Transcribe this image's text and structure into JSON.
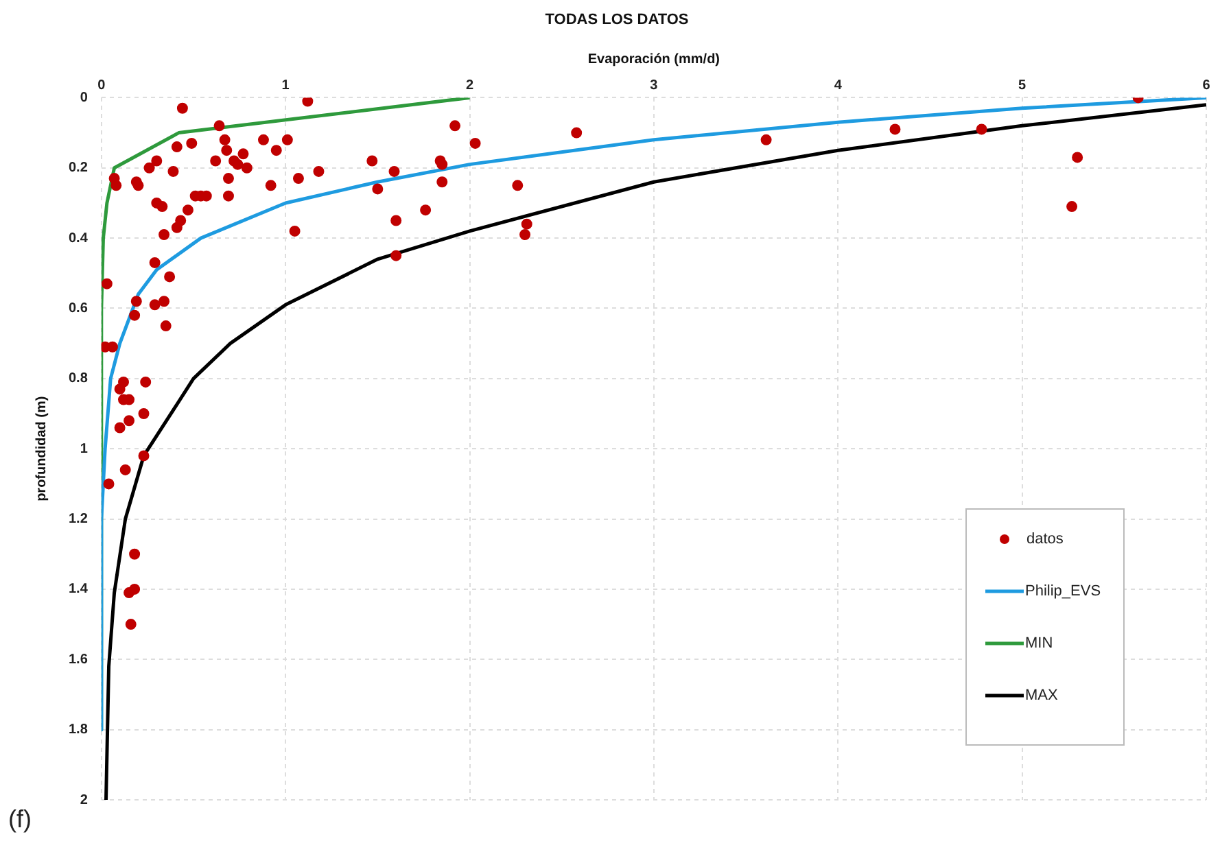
{
  "chart_data": {
    "type": "scatter",
    "title": "TODAS LOS DATOS",
    "xlabel": "Evaporación (mm/d)",
    "ylabel": "profundidad (m)",
    "xlim": [
      0,
      6
    ],
    "xticks": [
      0,
      1,
      2,
      3,
      4,
      5,
      6
    ],
    "ylim": [
      2,
      0
    ],
    "yticks": [
      0,
      0.2,
      0.4,
      0.6,
      0.8,
      1,
      1.2,
      1.4,
      1.6,
      1.8,
      2
    ],
    "grid": true,
    "legend": "bottom right",
    "marker": "circle",
    "annotations": [
      "(f)"
    ],
    "series": [
      {
        "name": "datos",
        "type": "scatter",
        "color": "#c00000",
        "x": [
          0.44,
          1.12,
          0.64,
          0.67,
          0.88,
          1.01,
          0.95,
          0.41,
          0.49,
          0.68,
          0.77,
          0.62,
          0.72,
          0.74,
          0.79,
          0.3,
          0.26,
          0.39,
          0.07,
          0.08,
          0.19,
          0.2,
          0.69,
          1.07,
          1.18,
          0.92,
          0.51,
          0.54,
          0.57,
          0.69,
          0.3,
          0.33,
          0.47,
          0.43,
          0.41,
          0.34,
          1.05,
          0.29,
          0.37,
          0.03,
          0.19,
          0.29,
          0.34,
          0.18,
          0.35,
          0.02,
          0.06,
          1.47,
          1.5,
          1.59,
          1.6,
          1.6,
          1.76,
          1.84,
          1.85,
          1.85,
          1.92,
          2.03,
          2.26,
          2.31,
          2.3,
          2.58,
          3.61,
          4.31,
          4.78,
          5.63,
          5.3,
          5.27,
          0.1,
          0.12,
          0.12,
          0.15,
          0.24,
          0.23,
          0.15,
          0.1,
          0.23,
          0.13,
          0.04,
          0.18,
          0.18,
          0.15,
          0.16
        ],
        "values": [
          0.03,
          0.01,
          0.08,
          0.12,
          0.12,
          0.12,
          0.15,
          0.14,
          0.13,
          0.15,
          0.16,
          0.18,
          0.18,
          0.19,
          0.2,
          0.18,
          0.2,
          0.21,
          0.23,
          0.25,
          0.24,
          0.25,
          0.23,
          0.23,
          0.21,
          0.25,
          0.28,
          0.28,
          0.28,
          0.28,
          0.3,
          0.31,
          0.32,
          0.35,
          0.37,
          0.39,
          0.38,
          0.47,
          0.51,
          0.53,
          0.58,
          0.59,
          0.58,
          0.62,
          0.65,
          0.71,
          0.71,
          0.18,
          0.26,
          0.21,
          0.35,
          0.45,
          0.32,
          0.18,
          0.19,
          0.24,
          0.08,
          0.13,
          0.25,
          0.36,
          0.39,
          0.1,
          0.12,
          0.09,
          0.09,
          0,
          0.17,
          0.31,
          0.83,
          0.81,
          0.86,
          0.86,
          0.81,
          0.9,
          0.92,
          0.94,
          1.02,
          1.06,
          1.1,
          1.3,
          1.4,
          1.41,
          1.5
        ]
      },
      {
        "name": "Philip_EVS",
        "type": "line",
        "color": "#1e9be0",
        "marker": "none",
        "x": [
          6,
          5,
          4,
          3,
          2,
          1.5,
          1,
          0.54,
          0.3,
          0.2,
          0.1,
          0.05,
          0.02,
          0.01,
          0,
          0
        ],
        "values": [
          0,
          0.03,
          0.07,
          0.12,
          0.19,
          0.24,
          0.3,
          0.4,
          0.49,
          0.56,
          0.7,
          0.8,
          1,
          1.1,
          1.2,
          1.8
        ]
      },
      {
        "name": "MIN",
        "type": "line",
        "color": "#2e9a3c",
        "marker": "none",
        "x": [
          2,
          0.42,
          0.07,
          0.03,
          0.01,
          0,
          0
        ],
        "values": [
          0,
          0.1,
          0.2,
          0.3,
          0.4,
          0.6,
          1.8
        ]
      },
      {
        "name": "MAX",
        "type": "line",
        "color": "#000000",
        "marker": "none",
        "x": [
          6,
          5,
          4,
          3,
          2,
          1.5,
          1,
          0.7,
          0.5,
          0.39,
          0.23,
          0.13,
          0.07,
          0.04,
          0.025
        ],
        "values": [
          0.02,
          0.08,
          0.15,
          0.24,
          0.38,
          0.46,
          0.59,
          0.7,
          0.8,
          0.89,
          1.02,
          1.2,
          1.41,
          1.62,
          2
        ]
      }
    ]
  }
}
